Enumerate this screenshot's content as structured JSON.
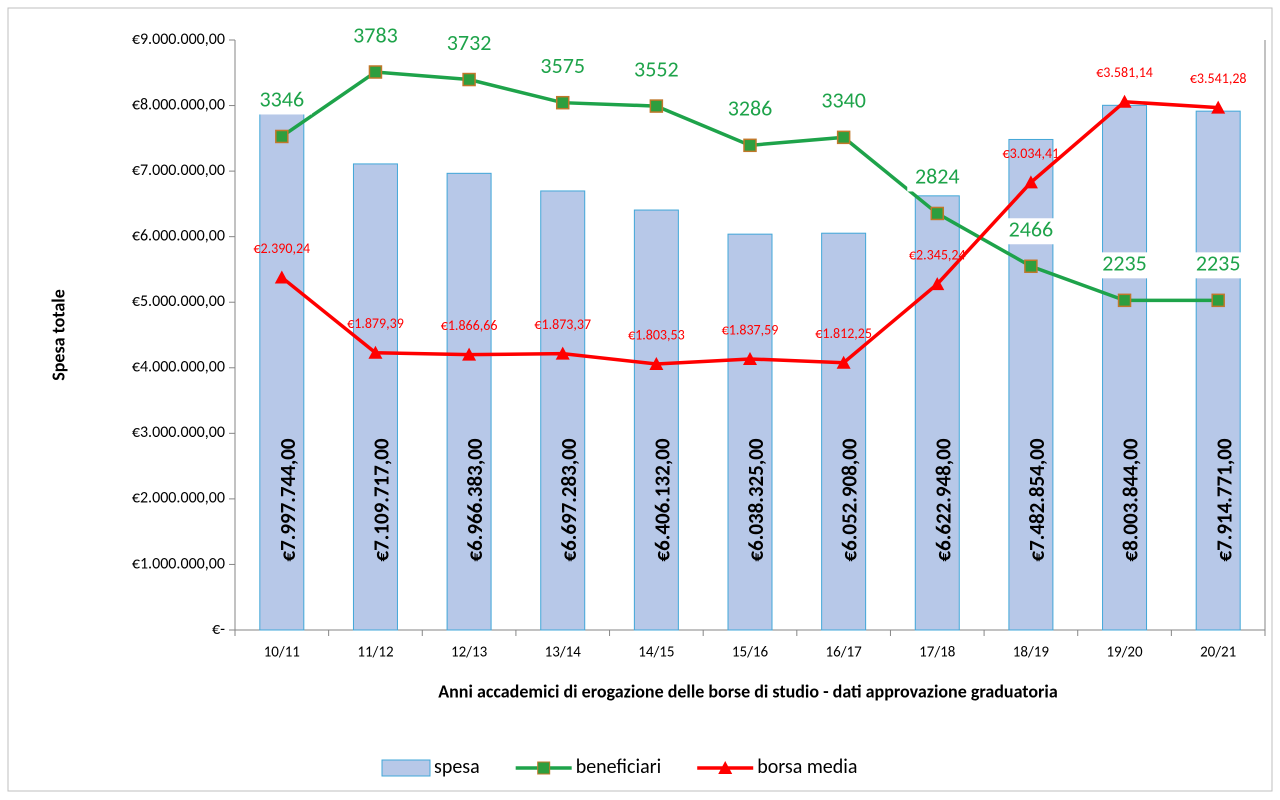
{
  "chart_data": {
    "type": "combo",
    "x_label": "Anni  accademici di erogazione delle borse di studio - dati approvazione graduatoria",
    "y_label": "Spesa totale",
    "categories": [
      "10/11",
      "11/12",
      "12/13",
      "13/14",
      "14/15",
      "15/16",
      "16/17",
      "17/18",
      "18/19",
      "19/20",
      "20/21"
    ],
    "ylim": [
      0,
      9000000
    ],
    "yticks": [
      {
        "value": 0,
        "label": "€-"
      },
      {
        "value": 1000000,
        "label": "€1.000.000,00"
      },
      {
        "value": 2000000,
        "label": "€2.000.000,00"
      },
      {
        "value": 3000000,
        "label": "€3.000.000,00"
      },
      {
        "value": 4000000,
        "label": "€4.000.000,00"
      },
      {
        "value": 5000000,
        "label": "€5.000.000,00"
      },
      {
        "value": 6000000,
        "label": "€6.000.000,00"
      },
      {
        "value": 7000000,
        "label": "€7.000.000,00"
      },
      {
        "value": 8000000,
        "label": "€8.000.000,00"
      },
      {
        "value": 9000000,
        "label": "€9.000.000,00"
      }
    ],
    "y2lim": [
      0,
      4000
    ],
    "legend": "bottom",
    "series": [
      {
        "name": "spesa",
        "type": "bar",
        "color": "#b7c8e8",
        "edge": "#41a7d8",
        "values": [
          7997744,
          7109717,
          6966383,
          6697283,
          6406132,
          6038325,
          6052908,
          6622948,
          7482854,
          8003844,
          7914771
        ],
        "value_labels": [
          "€7.997.744,00",
          "€7.109.717,00",
          "€6.966.383,00",
          "€6.697.283,00",
          "€6.406.132,00",
          "€6.038.325,00",
          "€6.052.908,00",
          "€6.622.948,00",
          "€7.482.854,00",
          "€8.003.844,00",
          "€7.914.771,00"
        ]
      },
      {
        "name": "beneficiari",
        "type": "line",
        "axis": "y2",
        "color": "#1ea34a",
        "marker": "square",
        "values": [
          3346,
          3783,
          3732,
          3575,
          3552,
          3286,
          3340,
          2824,
          2466,
          2235,
          2235
        ]
      },
      {
        "name": "borsa media",
        "type": "line",
        "axis": "y2",
        "color": "#ff0000",
        "marker": "triangle",
        "values": [
          2390.24,
          1879.39,
          1866.66,
          1873.37,
          1803.53,
          1837.59,
          1812.25,
          2345.24,
          3034.41,
          3581.14,
          3541.28
        ],
        "value_labels": [
          "€2.390,24",
          "€1.879,39",
          "€1.866,66",
          "€1.873,37",
          "€1.803,53",
          "€1.837,59",
          "€1.812,25",
          "€2.345,24",
          "€3.034,41",
          "€3.581,14",
          "€3.541,28"
        ]
      }
    ]
  }
}
